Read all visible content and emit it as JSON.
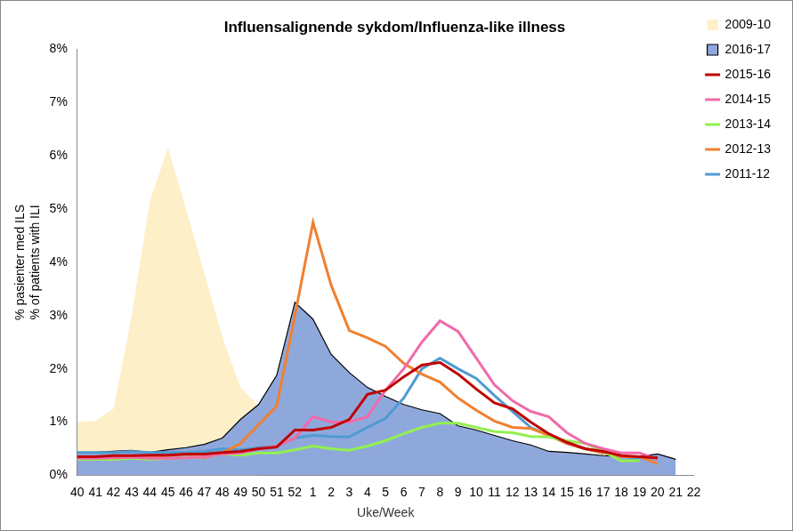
{
  "chart_data": {
    "type": "line",
    "title": "Influensalignende sykdom/Influenza-like illness",
    "x_label": "Uke/Week",
    "y_label": [
      "% pasienter med ILS",
      "% of patients with ILI"
    ],
    "categories": [
      40,
      41,
      42,
      43,
      44,
      45,
      46,
      47,
      48,
      49,
      50,
      51,
      52,
      1,
      2,
      3,
      4,
      5,
      6,
      7,
      8,
      9,
      10,
      11,
      12,
      13,
      14,
      15,
      16,
      17,
      18,
      19,
      20,
      21,
      22
    ],
    "ylim": [
      0,
      8
    ],
    "yticks": [
      {
        "value": 0,
        "label": "0%"
      },
      {
        "value": 1,
        "label": "1%"
      },
      {
        "value": 2,
        "label": "2%"
      },
      {
        "value": 3,
        "label": "3%"
      },
      {
        "value": 4,
        "label": "4%"
      },
      {
        "value": 5,
        "label": "5%"
      },
      {
        "value": 6,
        "label": "6%"
      },
      {
        "value": 7,
        "label": "7%"
      },
      {
        "value": 8,
        "label": "8%"
      }
    ],
    "grid": false,
    "legend": "right",
    "series": [
      {
        "name": "2009-10",
        "type": "area",
        "color": "#FDEFC8",
        "values": [
          1.0,
          1.02,
          1.25,
          3.0,
          5.15,
          6.15,
          5.0,
          3.8,
          2.6,
          1.65,
          1.3,
          null,
          null,
          null,
          null,
          null,
          null,
          null,
          null,
          null,
          null,
          null,
          null,
          null,
          null,
          null,
          null,
          null,
          null,
          null,
          null,
          null,
          null,
          null,
          null
        ]
      },
      {
        "name": "2016-17",
        "type": "area",
        "color": "#8FA8DC",
        "values": [
          0.42,
          0.43,
          0.45,
          0.47,
          0.43,
          0.48,
          0.52,
          0.58,
          0.7,
          1.05,
          1.33,
          1.88,
          3.25,
          2.93,
          2.27,
          1.93,
          1.65,
          1.48,
          1.33,
          1.23,
          1.16,
          0.93,
          0.85,
          0.75,
          0.65,
          0.57,
          0.45,
          0.43,
          0.4,
          0.37,
          0.35,
          0.35,
          0.4,
          0.3,
          null
        ]
      },
      {
        "name": "2015-16",
        "type": "line",
        "color": "#C00000",
        "values": [
          0.35,
          0.35,
          0.37,
          0.37,
          0.38,
          0.38,
          0.4,
          0.4,
          0.43,
          0.45,
          0.5,
          0.53,
          0.85,
          0.85,
          0.9,
          1.05,
          1.52,
          1.6,
          1.85,
          2.07,
          2.12,
          1.9,
          1.62,
          1.36,
          1.25,
          1.0,
          0.78,
          0.62,
          0.5,
          0.45,
          0.37,
          0.35,
          0.33,
          null,
          null
        ]
      },
      {
        "name": "2014-15",
        "type": "line",
        "color": "#F06AAA",
        "values": [
          0.32,
          0.32,
          0.33,
          0.34,
          0.32,
          0.32,
          0.33,
          0.35,
          0.4,
          0.42,
          0.5,
          0.55,
          0.7,
          1.1,
          1.0,
          1.0,
          1.1,
          1.6,
          2.0,
          2.5,
          2.9,
          2.7,
          2.2,
          1.7,
          1.4,
          1.2,
          1.1,
          0.8,
          0.6,
          0.5,
          0.42,
          0.42,
          0.3,
          null,
          null
        ]
      },
      {
        "name": "2013-14",
        "type": "line",
        "color": "#92F050",
        "values": [
          0.3,
          0.3,
          0.3,
          0.32,
          0.3,
          0.32,
          0.33,
          0.35,
          0.4,
          0.38,
          0.42,
          0.42,
          0.48,
          0.55,
          0.5,
          0.47,
          0.55,
          0.65,
          0.78,
          0.9,
          0.98,
          0.98,
          0.9,
          0.82,
          0.8,
          0.73,
          0.72,
          0.65,
          0.6,
          0.45,
          0.27,
          0.28,
          null,
          null,
          null
        ]
      },
      {
        "name": "2012-13",
        "type": "line",
        "color": "#F08030",
        "values": [
          0.35,
          0.35,
          0.35,
          0.35,
          0.35,
          0.37,
          0.4,
          0.33,
          0.42,
          0.6,
          0.95,
          1.3,
          3.0,
          4.75,
          3.57,
          2.72,
          2.58,
          2.42,
          2.1,
          1.9,
          1.75,
          1.45,
          1.22,
          1.02,
          0.9,
          0.88,
          0.75,
          0.6,
          0.5,
          0.42,
          0.35,
          0.35,
          0.22,
          null,
          null
        ]
      },
      {
        "name": "2011-12",
        "type": "line",
        "color": "#4F9BD0",
        "values": [
          0.43,
          0.43,
          0.43,
          0.45,
          0.43,
          0.43,
          0.43,
          0.45,
          0.5,
          0.48,
          0.52,
          0.55,
          0.7,
          0.75,
          0.73,
          0.72,
          0.9,
          1.07,
          1.45,
          2.0,
          2.2,
          2.0,
          1.82,
          1.5,
          1.2,
          0.9,
          0.75,
          0.6,
          0.5,
          0.42,
          0.37,
          0.3,
          null,
          null,
          null
        ]
      }
    ]
  }
}
